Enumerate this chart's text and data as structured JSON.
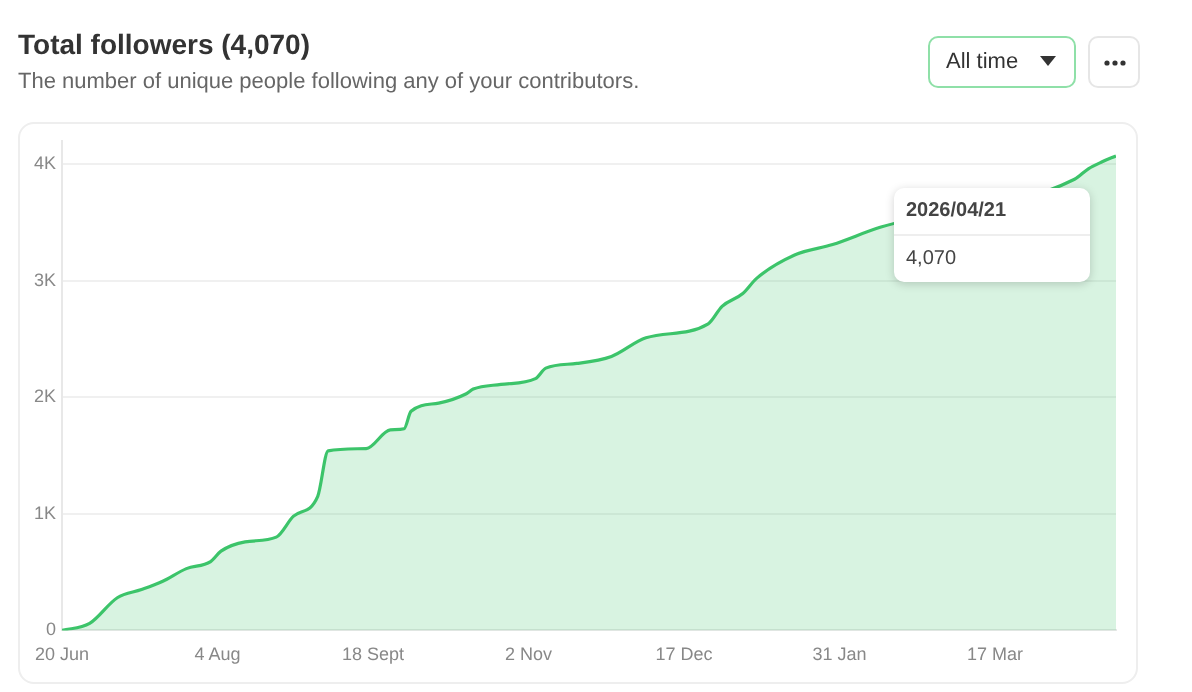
{
  "chart_data": {
    "type": "area",
    "title": "Total followers (4,070)",
    "subtitle": "The number of unique people following any of your contributors.",
    "x": [
      "2025-06-20",
      "2025-06-28",
      "2025-07-06",
      "2025-07-13",
      "2025-07-19",
      "2025-07-26",
      "2025-08-02",
      "2025-08-05",
      "2025-08-12",
      "2025-08-21",
      "2025-08-26",
      "2025-09-02",
      "2025-09-05",
      "2025-09-16",
      "2025-09-23",
      "2025-09-27",
      "2025-09-29",
      "2025-10-07",
      "2025-10-15",
      "2025-10-17",
      "2025-10-25",
      "2025-11-04",
      "2025-11-07",
      "2025-11-16",
      "2025-11-26",
      "2025-12-06",
      "2025-12-24",
      "2025-12-28",
      "2026-01-03",
      "2026-01-07",
      "2026-01-18",
      "2026-01-29",
      "2026-02-12",
      "2026-04-09",
      "2026-04-13",
      "2026-04-17",
      "2026-04-21"
    ],
    "series": [
      {
        "color": "#3cc46a",
        "values": [
          0,
          60,
          280,
          350,
          420,
          530,
          590,
          680,
          760,
          800,
          980,
          1150,
          1540,
          1560,
          1720,
          1730,
          1880,
          1950,
          2030,
          2070,
          2110,
          2160,
          2250,
          2290,
          2350,
          2510,
          2630,
          2780,
          2890,
          3020,
          3220,
          3310,
          3460,
          3870,
          3960,
          4020,
          4070
        ]
      }
    ],
    "xlim": [
      "2025-06-20",
      "2026-04-21"
    ],
    "xticks": [
      {
        "value": "2025-06-20",
        "label": "20 Jun"
      },
      {
        "value": "2025-08-04",
        "label": "4 Aug"
      },
      {
        "value": "2025-09-18",
        "label": "18 Sept"
      },
      {
        "value": "2025-11-02",
        "label": "2 Nov"
      },
      {
        "value": "2025-12-17",
        "label": "17 Dec"
      },
      {
        "value": "2026-01-31",
        "label": "31 Jan"
      },
      {
        "value": "2026-03-17",
        "label": "17 Mar"
      }
    ],
    "ylim": [
      0,
      4200
    ],
    "yticks": [
      0,
      {
        "value": 1000,
        "label": "1K"
      },
      {
        "value": 2000,
        "label": "2K"
      },
      {
        "value": 3000,
        "label": "3K"
      },
      {
        "value": 4000,
        "label": "4K"
      }
    ],
    "grid": "y",
    "legend": false,
    "marker": "none",
    "line_style": "solid",
    "annotations": [
      "All time",
      "2026/04/21",
      "4,070"
    ]
  }
}
